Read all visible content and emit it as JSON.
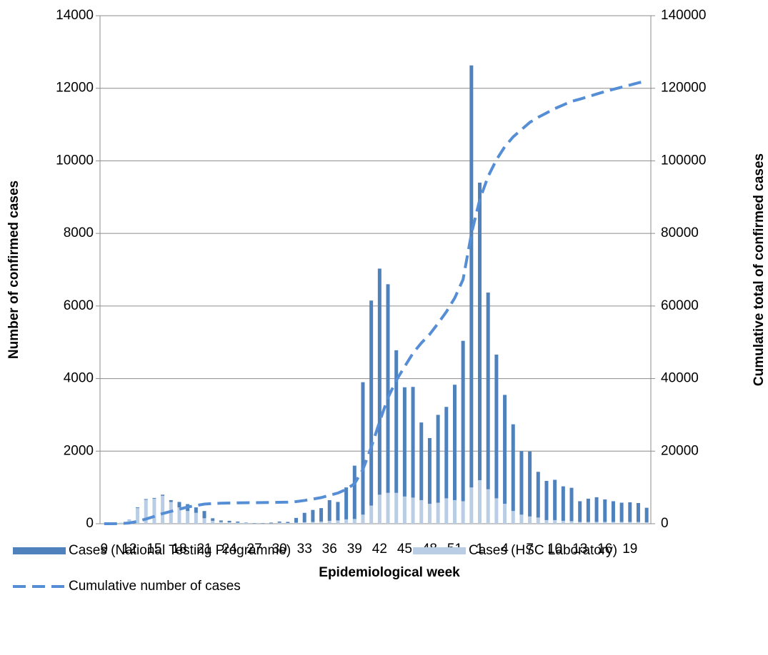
{
  "chart_data": {
    "type": "bar",
    "x_label": "Epidemiological week",
    "y_label": "Number of confirmed cases",
    "y2_label": "Cumulative total of confirmed cases",
    "categories": [
      "9",
      null,
      null,
      "12",
      null,
      null,
      "15",
      null,
      null,
      "18",
      null,
      null,
      "21",
      null,
      null,
      "24",
      null,
      null,
      "27",
      null,
      null,
      "30",
      null,
      null,
      "33",
      null,
      null,
      "36",
      null,
      null,
      "39",
      null,
      null,
      "42",
      null,
      null,
      "45",
      null,
      null,
      "48",
      null,
      null,
      "51",
      null,
      null,
      "1",
      null,
      null,
      "4",
      null,
      null,
      "7",
      null,
      null,
      "10",
      null,
      null,
      "13",
      null,
      null,
      "16",
      null,
      null,
      "19",
      null,
      null
    ],
    "series": [
      {
        "name": "Cases (National Testing Programme)",
        "type": "bar",
        "color": "#4f81bd",
        "values": [
          0,
          0,
          0,
          10,
          20,
          20,
          20,
          30,
          50,
          150,
          190,
          150,
          200,
          70,
          40,
          40,
          30,
          10,
          10,
          10,
          20,
          30,
          30,
          130,
          260,
          330,
          370,
          570,
          510,
          880,
          1470,
          3650,
          5650,
          6230,
          5750,
          3930,
          3010,
          3050,
          2140,
          1810,
          2420,
          2520,
          3180,
          4420,
          11630,
          8200,
          5420,
          3960,
          3000,
          2390,
          1750,
          1790,
          1260,
          1080,
          1110,
          950,
          920,
          570,
          640,
          680,
          620,
          570,
          530,
          540,
          520,
          400
        ]
      },
      {
        "name": "Cases (HSC Laboratory)",
        "type": "bar",
        "color": "#b9cde5",
        "values": [
          0,
          0,
          30,
          100,
          430,
          660,
          690,
          770,
          600,
          450,
          350,
          300,
          150,
          80,
          50,
          40,
          30,
          20,
          10,
          10,
          10,
          30,
          20,
          30,
          40,
          50,
          60,
          80,
          90,
          120,
          130,
          250,
          500,
          800,
          850,
          850,
          750,
          720,
          650,
          550,
          580,
          700,
          650,
          620,
          1000,
          1200,
          950,
          700,
          550,
          350,
          250,
          200,
          170,
          100,
          100,
          80,
          70,
          50,
          50,
          50,
          50,
          50,
          50,
          50,
          50,
          40
        ]
      },
      {
        "name": "Cumulative number of cases",
        "type": "line",
        "axis": "y2",
        "color": "#558ed5",
        "values": [
          0,
          0,
          50,
          200,
          650,
          1300,
          2000,
          2800,
          3400,
          4000,
          4600,
          5000,
          5400,
          5550,
          5650,
          5700,
          5750,
          5780,
          5800,
          5820,
          5850,
          5900,
          5950,
          6100,
          6400,
          6800,
          7200,
          7850,
          8450,
          9450,
          11050,
          14950,
          21100,
          28100,
          34700,
          39500,
          43300,
          47000,
          49800,
          52200,
          55200,
          58400,
          62200,
          67300,
          79900,
          89300,
          95700,
          100300,
          103900,
          106600,
          108600,
          110600,
          112000,
          113200,
          114400,
          115400,
          116400,
          117000,
          117700,
          118400,
          119100,
          119700,
          120300,
          120900,
          121500,
          122000
        ]
      }
    ],
    "stacked": true,
    "ylim": [
      0,
      14000
    ],
    "yticks": [
      0,
      2000,
      4000,
      6000,
      8000,
      10000,
      12000,
      14000
    ],
    "y2lim": [
      0,
      140000
    ],
    "y2ticks": [
      0,
      20000,
      40000,
      60000,
      80000,
      100000,
      120000,
      140000
    ],
    "grid": true,
    "legend": "bottom"
  }
}
